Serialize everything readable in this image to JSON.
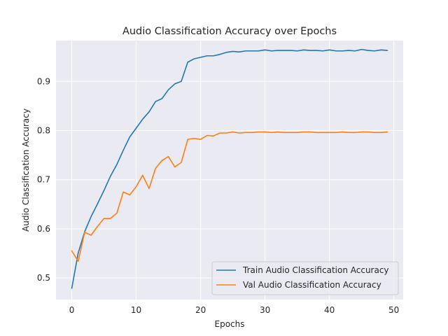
{
  "chart_data": {
    "type": "line",
    "title": "Audio Classification Accuracy over Epochs",
    "xlabel": "Epochs",
    "ylabel": "Audio Classification Accuracy",
    "xlim": [
      -2.45,
      51.45
    ],
    "ylim": [
      0.456,
      0.983
    ],
    "xticks": [
      0,
      10,
      20,
      30,
      40,
      50
    ],
    "yticks": [
      0.5,
      0.6,
      0.7,
      0.8,
      0.9
    ],
    "grid": true,
    "legend_position": "lower-right",
    "x": [
      0,
      1,
      2,
      3,
      4,
      5,
      6,
      7,
      8,
      9,
      10,
      11,
      12,
      13,
      14,
      15,
      16,
      17,
      18,
      19,
      20,
      21,
      22,
      23,
      24,
      25,
      26,
      27,
      28,
      29,
      30,
      31,
      32,
      33,
      34,
      35,
      36,
      37,
      38,
      39,
      40,
      41,
      42,
      43,
      44,
      45,
      46,
      47,
      48,
      49
    ],
    "series": [
      {
        "name": "Train Audio Classification Accuracy",
        "color": "#1f77b4",
        "values": [
          0.479,
          0.551,
          0.594,
          0.625,
          0.651,
          0.678,
          0.707,
          0.731,
          0.76,
          0.787,
          0.805,
          0.823,
          0.838,
          0.859,
          0.865,
          0.883,
          0.895,
          0.9,
          0.939,
          0.946,
          0.949,
          0.952,
          0.952,
          0.955,
          0.959,
          0.961,
          0.96,
          0.962,
          0.962,
          0.962,
          0.964,
          0.962,
          0.963,
          0.963,
          0.963,
          0.962,
          0.964,
          0.963,
          0.963,
          0.962,
          0.964,
          0.962,
          0.962,
          0.963,
          0.962,
          0.965,
          0.963,
          0.962,
          0.964,
          0.963
        ]
      },
      {
        "name": "Val Audio Classification Accuracy",
        "color": "#ff7f0e",
        "values": [
          0.555,
          0.534,
          0.593,
          0.587,
          0.605,
          0.621,
          0.621,
          0.632,
          0.675,
          0.669,
          0.686,
          0.709,
          0.682,
          0.723,
          0.739,
          0.747,
          0.726,
          0.735,
          0.782,
          0.784,
          0.782,
          0.79,
          0.789,
          0.795,
          0.795,
          0.797,
          0.795,
          0.796,
          0.796,
          0.797,
          0.797,
          0.796,
          0.797,
          0.796,
          0.796,
          0.796,
          0.797,
          0.797,
          0.796,
          0.796,
          0.796,
          0.796,
          0.797,
          0.796,
          0.796,
          0.797,
          0.797,
          0.796,
          0.796,
          0.797
        ]
      }
    ]
  }
}
